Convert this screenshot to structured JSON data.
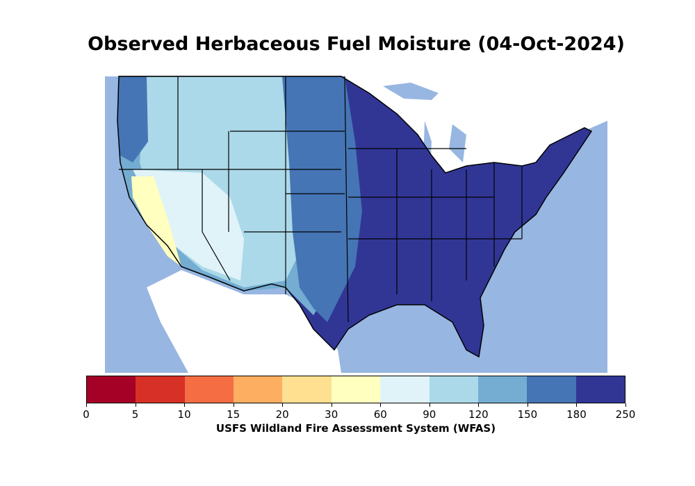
{
  "title": "Observed Herbaceous Fuel Moisture (04-Oct-2024)",
  "colorbar": {
    "caption": "USFS Wildland Fire Assessment System (WFAS)",
    "ticks": [
      "0",
      "5",
      "10",
      "15",
      "20",
      "30",
      "60",
      "90",
      "120",
      "150",
      "180",
      "250"
    ],
    "colors": [
      "#a50026",
      "#d73027",
      "#f46d43",
      "#fdae61",
      "#fee090",
      "#ffffbf",
      "#e0f3f8",
      "#abd9e9",
      "#74add1",
      "#4575b4",
      "#313695"
    ]
  },
  "map": {
    "region": "Contiguous United States",
    "ocean_color": "#97b6e1",
    "land_outside_color": "#ffffff"
  }
}
